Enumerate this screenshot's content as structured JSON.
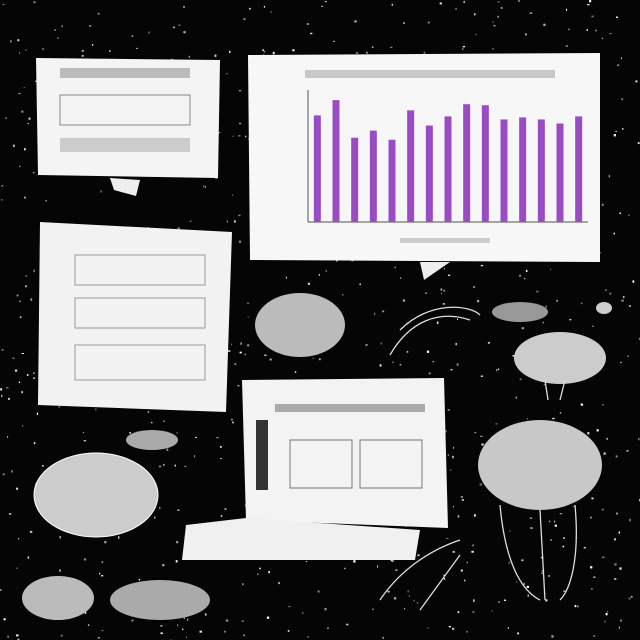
{
  "chart_data": {
    "type": "bar",
    "categories": [
      null,
      null,
      null,
      null,
      null,
      null,
      null,
      null,
      null,
      null,
      null,
      null,
      null,
      null,
      null
    ],
    "values": [
      105,
      120,
      83,
      90,
      81,
      110,
      95,
      104,
      116,
      115,
      101,
      103,
      101,
      97,
      104
    ],
    "color": "#9a4cc4",
    "ylim": [
      0,
      130
    ]
  }
}
